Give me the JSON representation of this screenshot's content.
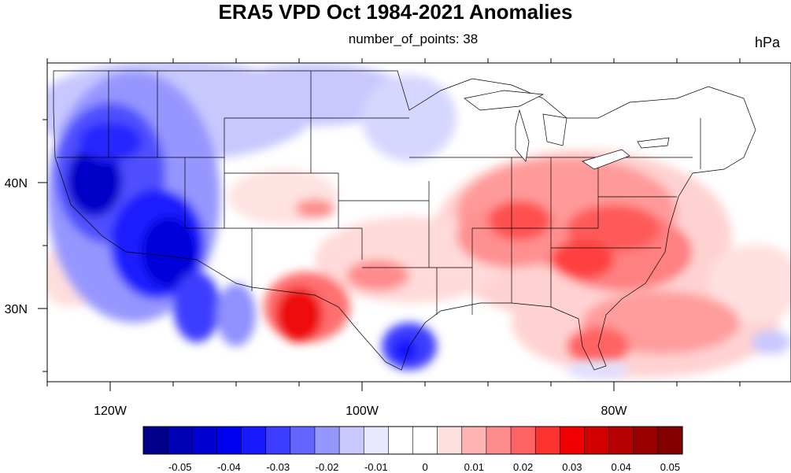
{
  "title": "ERA5 VPD Oct 1984-2021 Anomalies",
  "subtitle": "number_of_points: 38",
  "units": "hPa",
  "map": {
    "lon_ticks": [
      {
        "lon": -120,
        "label": "120W"
      },
      {
        "lon": -100,
        "label": "100W"
      },
      {
        "lon": -80,
        "label": "80W"
      }
    ],
    "lat_ticks": [
      {
        "lat": 40,
        "label": "40N"
      },
      {
        "lat": 30,
        "label": "30N"
      }
    ]
  },
  "colorbar": {
    "colors": [
      "#00008c",
      "#0000b4",
      "#0000d2",
      "#0000f0",
      "#1919ff",
      "#3c3cff",
      "#6464ff",
      "#9696ff",
      "#c8c8ff",
      "#e8e8ff",
      "#ffffff",
      "#ffffff",
      "#ffe0e0",
      "#ffb4b4",
      "#ff8c8c",
      "#ff6464",
      "#ff3232",
      "#f00000",
      "#d20000",
      "#b40000",
      "#9b0000",
      "#820000"
    ],
    "labels": [
      "-0.05",
      "-0.04",
      "-0.03",
      "-0.02",
      "-0.01",
      "0",
      "0.01",
      "0.02",
      "0.03",
      "0.04",
      "0.05"
    ]
  }
}
